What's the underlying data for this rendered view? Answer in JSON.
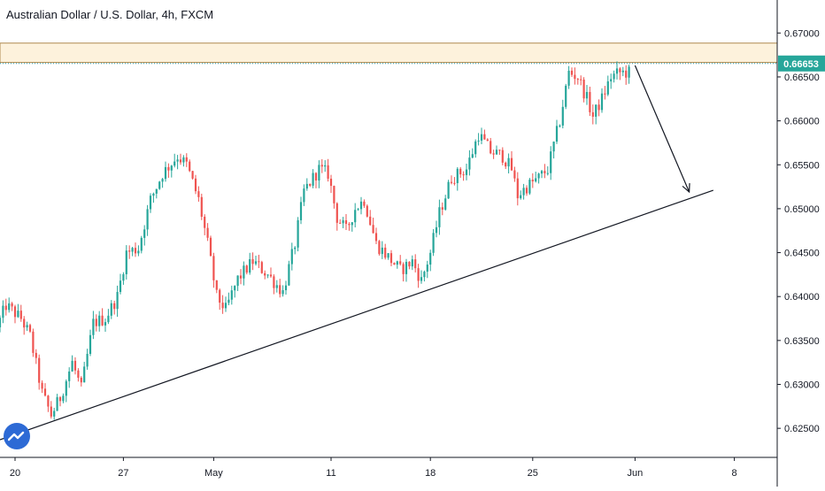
{
  "app": {
    "title": "Australian Dollar / U.S. Dollar, 4h, FXCM"
  },
  "colors": {
    "up_candle": "#26a69a",
    "down_candle": "#ef5350",
    "zone_fill": "#fdf2dc",
    "zone_border": "#b08a50",
    "price_line": "#2196a8",
    "price_badge": "#26a69a",
    "trendline": "#131722",
    "axis_text": "#131722"
  },
  "icons": {
    "logo": "tradingview-cloud-icon"
  },
  "chart_data": {
    "type": "candlestick",
    "title": "Australian Dollar / U.S. Dollar, 4h, FXCM",
    "symbol": "AUD/USD",
    "timeframe": "4h",
    "source": "FXCM",
    "x_tick_labels": [
      "20",
      "27",
      "May",
      "11",
      "18",
      "25",
      "Jun",
      "8"
    ],
    "x_tick_index": [
      5,
      41,
      71,
      110,
      143,
      177,
      211,
      244
    ],
    "y_tick_labels": [
      "0.67000",
      "0.66500",
      "0.66000",
      "0.65500",
      "0.65000",
      "0.64500",
      "0.64000",
      "0.63500",
      "0.63000",
      "0.62500"
    ],
    "y_ticks": [
      0.67,
      0.665,
      0.66,
      0.655,
      0.65,
      0.645,
      0.64,
      0.635,
      0.63,
      0.625
    ],
    "ylim": [
      0.6195,
      0.6718
    ],
    "xlim": [
      0,
      258
    ],
    "grid": false,
    "last_price": 0.66653,
    "last_price_label": "0.66653",
    "resistance_zone": [
      0.66665,
      0.66885
    ],
    "ascending_trendline": [
      [
        0,
        0.6237
      ],
      [
        237,
        0.6521
      ]
    ],
    "projection_arrow": [
      [
        211,
        0.6663
      ],
      [
        229,
        0.6519
      ]
    ],
    "anchors": [
      [
        0,
        0.6365
      ],
      [
        3,
        0.639
      ],
      [
        8,
        0.6375
      ],
      [
        11,
        0.6355
      ],
      [
        15,
        0.629
      ],
      [
        18,
        0.6265
      ],
      [
        21,
        0.6285
      ],
      [
        25,
        0.6325
      ],
      [
        28,
        0.6295
      ],
      [
        32,
        0.637
      ],
      [
        36,
        0.6375
      ],
      [
        40,
        0.64
      ],
      [
        43,
        0.645
      ],
      [
        47,
        0.6455
      ],
      [
        51,
        0.651
      ],
      [
        55,
        0.654
      ],
      [
        60,
        0.656
      ],
      [
        63,
        0.655
      ],
      [
        67,
        0.651
      ],
      [
        70,
        0.646
      ],
      [
        73,
        0.64
      ],
      [
        76,
        0.6385
      ],
      [
        80,
        0.642
      ],
      [
        85,
        0.644
      ],
      [
        90,
        0.6425
      ],
      [
        95,
        0.6405
      ],
      [
        99,
        0.646
      ],
      [
        102,
        0.652
      ],
      [
        107,
        0.6545
      ],
      [
        110,
        0.654
      ],
      [
        113,
        0.649
      ],
      [
        116,
        0.6475
      ],
      [
        119,
        0.65
      ],
      [
        122,
        0.651
      ],
      [
        126,
        0.646
      ],
      [
        130,
        0.6445
      ],
      [
        134,
        0.643
      ],
      [
        138,
        0.644
      ],
      [
        141,
        0.6418
      ],
      [
        144,
        0.645
      ],
      [
        147,
        0.6495
      ],
      [
        151,
        0.6535
      ],
      [
        156,
        0.6545
      ],
      [
        160,
        0.6585
      ],
      [
        164,
        0.6565
      ],
      [
        168,
        0.656
      ],
      [
        171,
        0.6545
      ],
      [
        173,
        0.6515
      ],
      [
        176,
        0.6525
      ],
      [
        180,
        0.6535
      ],
      [
        183,
        0.6545
      ],
      [
        187,
        0.66
      ],
      [
        190,
        0.6655
      ],
      [
        193,
        0.665
      ],
      [
        196,
        0.6625
      ],
      [
        198,
        0.6605
      ],
      [
        201,
        0.6625
      ],
      [
        204,
        0.665
      ],
      [
        207,
        0.6655
      ],
      [
        209,
        0.6655
      ]
    ]
  }
}
